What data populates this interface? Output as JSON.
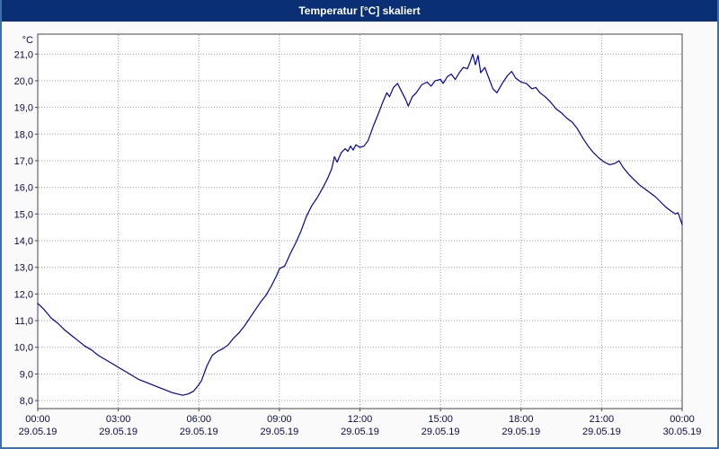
{
  "window": {
    "title": "Temperatur [°C] skaliert"
  },
  "chart_data": {
    "type": "line",
    "title": "Temperatur [°C] skaliert",
    "y_unit_label": "°C",
    "x_min": 0,
    "x_max": 24,
    "y_min": 7.7,
    "y_max": 21.75,
    "grid": "dotted",
    "legend_position": "none",
    "y_ticks": [
      {
        "value": 21,
        "label": "21,0"
      },
      {
        "value": 20,
        "label": "20,0"
      },
      {
        "value": 19,
        "label": "19,0"
      },
      {
        "value": 18,
        "label": "18,0"
      },
      {
        "value": 17,
        "label": "17,0"
      },
      {
        "value": 16,
        "label": "16,0"
      },
      {
        "value": 15,
        "label": "15,0"
      },
      {
        "value": 14,
        "label": "14,0"
      },
      {
        "value": 13,
        "label": "13,0"
      },
      {
        "value": 12,
        "label": "12,0"
      },
      {
        "value": 11,
        "label": "11,0"
      },
      {
        "value": 10,
        "label": "10,0"
      },
      {
        "value": 9,
        "label": "9,0"
      },
      {
        "value": 8,
        "label": "8,0"
      }
    ],
    "x_ticks": [
      {
        "pos": 0,
        "time": "00:00",
        "date": "29.05.19"
      },
      {
        "pos": 3,
        "time": "03:00",
        "date": "29.05.19"
      },
      {
        "pos": 6,
        "time": "06:00",
        "date": "29.05.19"
      },
      {
        "pos": 9,
        "time": "09:00",
        "date": "29.05.19"
      },
      {
        "pos": 12,
        "time": "12:00",
        "date": "29.05.19"
      },
      {
        "pos": 15,
        "time": "15:00",
        "date": "29.05.19"
      },
      {
        "pos": 18,
        "time": "18:00",
        "date": "29.05.19"
      },
      {
        "pos": 21,
        "time": "21:00",
        "date": "29.05.19"
      },
      {
        "pos": 24,
        "time": "00:00",
        "date": "30.05.19"
      }
    ],
    "series": [
      {
        "name": "Temperatur",
        "color": "#0000b0",
        "points": [
          [
            0,
            11.65
          ],
          [
            0.25,
            11.4
          ],
          [
            0.5,
            11.1
          ],
          [
            0.75,
            10.9
          ],
          [
            1,
            10.65
          ],
          [
            1.25,
            10.45
          ],
          [
            1.5,
            10.25
          ],
          [
            1.75,
            10.05
          ],
          [
            2,
            9.9
          ],
          [
            2.25,
            9.7
          ],
          [
            2.5,
            9.55
          ],
          [
            2.75,
            9.4
          ],
          [
            3,
            9.25
          ],
          [
            3.25,
            9.1
          ],
          [
            3.5,
            8.95
          ],
          [
            3.75,
            8.8
          ],
          [
            4,
            8.7
          ],
          [
            4.25,
            8.6
          ],
          [
            4.5,
            8.5
          ],
          [
            4.75,
            8.4
          ],
          [
            5,
            8.3
          ],
          [
            5.2,
            8.25
          ],
          [
            5.4,
            8.2
          ],
          [
            5.6,
            8.25
          ],
          [
            5.8,
            8.35
          ],
          [
            6,
            8.6
          ],
          [
            6.1,
            8.75
          ],
          [
            6.3,
            9.3
          ],
          [
            6.5,
            9.7
          ],
          [
            6.7,
            9.85
          ],
          [
            6.9,
            9.95
          ],
          [
            7.1,
            10.1
          ],
          [
            7.3,
            10.35
          ],
          [
            7.5,
            10.55
          ],
          [
            7.7,
            10.8
          ],
          [
            7.9,
            11.1
          ],
          [
            8.1,
            11.4
          ],
          [
            8.3,
            11.7
          ],
          [
            8.5,
            11.95
          ],
          [
            8.7,
            12.3
          ],
          [
            8.9,
            12.7
          ],
          [
            9,
            12.95
          ],
          [
            9.1,
            13.0
          ],
          [
            9.2,
            13.05
          ],
          [
            9.4,
            13.5
          ],
          [
            9.6,
            13.9
          ],
          [
            9.8,
            14.35
          ],
          [
            10,
            14.9
          ],
          [
            10.2,
            15.3
          ],
          [
            10.4,
            15.6
          ],
          [
            10.6,
            15.95
          ],
          [
            10.8,
            16.35
          ],
          [
            10.95,
            16.7
          ],
          [
            11.05,
            17.15
          ],
          [
            11.15,
            16.95
          ],
          [
            11.3,
            17.3
          ],
          [
            11.45,
            17.45
          ],
          [
            11.55,
            17.35
          ],
          [
            11.65,
            17.55
          ],
          [
            11.75,
            17.4
          ],
          [
            11.85,
            17.6
          ],
          [
            12,
            17.5
          ],
          [
            12.15,
            17.55
          ],
          [
            12.3,
            17.75
          ],
          [
            12.5,
            18.3
          ],
          [
            12.7,
            18.8
          ],
          [
            12.85,
            19.2
          ],
          [
            13,
            19.55
          ],
          [
            13.1,
            19.4
          ],
          [
            13.25,
            19.75
          ],
          [
            13.4,
            19.9
          ],
          [
            13.55,
            19.6
          ],
          [
            13.7,
            19.3
          ],
          [
            13.8,
            19.05
          ],
          [
            13.95,
            19.4
          ],
          [
            14.1,
            19.55
          ],
          [
            14.3,
            19.85
          ],
          [
            14.5,
            19.95
          ],
          [
            14.65,
            19.8
          ],
          [
            14.8,
            20.0
          ],
          [
            15,
            20.05
          ],
          [
            15.1,
            19.9
          ],
          [
            15.25,
            20.15
          ],
          [
            15.4,
            20.25
          ],
          [
            15.55,
            20.05
          ],
          [
            15.7,
            20.3
          ],
          [
            15.85,
            20.5
          ],
          [
            16,
            20.45
          ],
          [
            16.1,
            20.7
          ],
          [
            16.2,
            21.0
          ],
          [
            16.3,
            20.6
          ],
          [
            16.4,
            20.95
          ],
          [
            16.5,
            20.3
          ],
          [
            16.65,
            20.5
          ],
          [
            16.8,
            20.1
          ],
          [
            16.95,
            19.7
          ],
          [
            17.1,
            19.55
          ],
          [
            17.3,
            19.9
          ],
          [
            17.5,
            20.2
          ],
          [
            17.65,
            20.35
          ],
          [
            17.8,
            20.1
          ],
          [
            18,
            19.95
          ],
          [
            18.2,
            19.9
          ],
          [
            18.4,
            19.7
          ],
          [
            18.55,
            19.75
          ],
          [
            18.7,
            19.55
          ],
          [
            18.9,
            19.4
          ],
          [
            19.1,
            19.2
          ],
          [
            19.3,
            18.95
          ],
          [
            19.5,
            18.8
          ],
          [
            19.7,
            18.6
          ],
          [
            19.9,
            18.45
          ],
          [
            20.1,
            18.2
          ],
          [
            20.3,
            17.85
          ],
          [
            20.5,
            17.55
          ],
          [
            20.7,
            17.3
          ],
          [
            20.9,
            17.1
          ],
          [
            21.1,
            16.95
          ],
          [
            21.3,
            16.85
          ],
          [
            21.5,
            16.9
          ],
          [
            21.65,
            17.0
          ],
          [
            21.8,
            16.75
          ],
          [
            22,
            16.5
          ],
          [
            22.2,
            16.3
          ],
          [
            22.4,
            16.1
          ],
          [
            22.6,
            15.95
          ],
          [
            22.8,
            15.8
          ],
          [
            23,
            15.65
          ],
          [
            23.2,
            15.45
          ],
          [
            23.4,
            15.25
          ],
          [
            23.6,
            15.1
          ],
          [
            23.75,
            15.0
          ],
          [
            23.85,
            15.05
          ],
          [
            24,
            14.6
          ]
        ]
      }
    ]
  },
  "colors": {
    "titlebar_bg": "#0b2f75",
    "titlebar_text": "#ffffff",
    "window_border": "#3f6fa8",
    "plot_bg": "#ffffff",
    "grid": "#999999",
    "axis_text": "#0a0a46",
    "line": "#0000b0"
  }
}
